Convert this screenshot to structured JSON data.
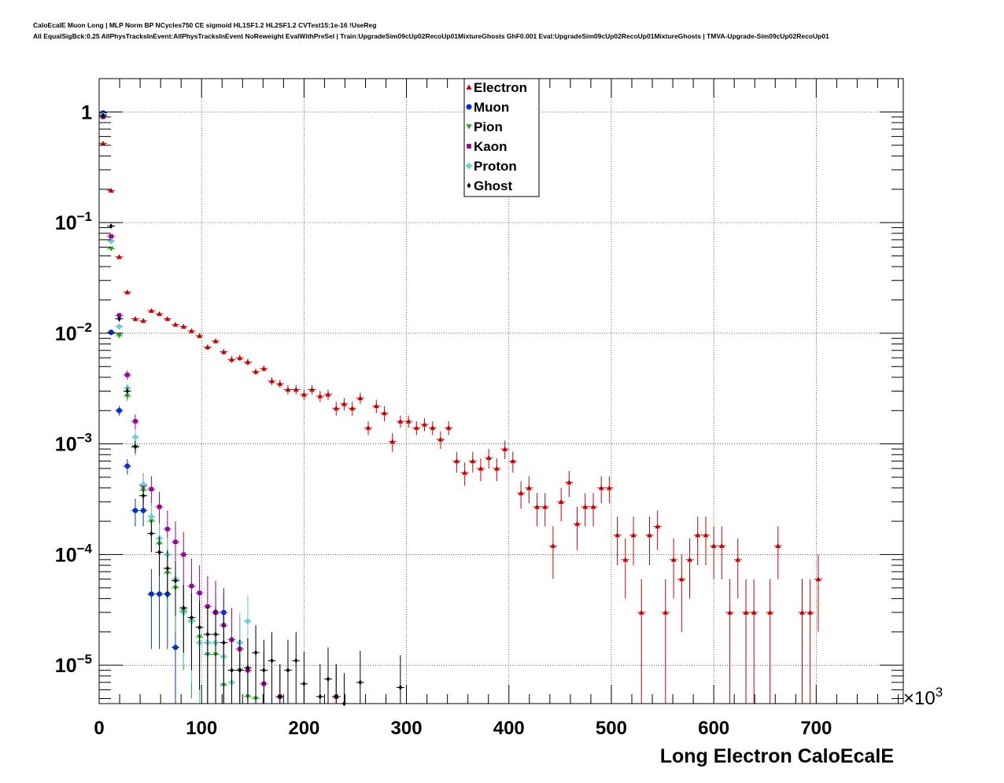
{
  "chart_data": {
    "type": "scatter",
    "title": "CaloEcalE Muon Long | MLP Norm BP NCycles750 CE sigmoid HL1SF1.2 HL2SF1.2 CVTest15:1e-16 !UseReg",
    "subtitle": "All EqualSigBck:0.25 AllPhysTracksInEvent:AllPhysTracksInEvent NoReweight EvalWithPreSel | Train:UpgradeSim09cUp02RecoUp01MixtureGhosts GhF0.001 Eval:UpgradeSim09cUp02RecoUp01MixtureGhosts | TMVA-Upgrade-Sim09cUp02RecoUp01",
    "xlabel": "Long Electron CaloEcalE",
    "x_multiplier_label": "×10",
    "x_multiplier_exp": "3",
    "xlim": [
      0,
      785
    ],
    "ylim": [
      4.5e-06,
      2.0
    ],
    "yscale": "log",
    "grid": true,
    "legend_position": "top-center",
    "x_ticks": [
      {
        "value": 0,
        "label": "0"
      },
      {
        "value": 100,
        "label": "100"
      },
      {
        "value": 200,
        "label": "200"
      },
      {
        "value": 300,
        "label": "300"
      },
      {
        "value": 400,
        "label": "400"
      },
      {
        "value": 500,
        "label": "500"
      },
      {
        "value": 600,
        "label": "600"
      },
      {
        "value": 700,
        "label": "700"
      }
    ],
    "y_ticks": [
      {
        "value": 1,
        "base": "1",
        "exp": ""
      },
      {
        "value": 0.1,
        "base": "10",
        "exp": "−1"
      },
      {
        "value": 0.01,
        "base": "10",
        "exp": "−2"
      },
      {
        "value": 0.001,
        "base": "10",
        "exp": "−3"
      },
      {
        "value": 0.0001,
        "base": "10",
        "exp": "−4"
      },
      {
        "value": 1e-05,
        "base": "10",
        "exp": "−5"
      }
    ],
    "series": [
      {
        "name": "Electron",
        "color": "#cc0000",
        "marker": "triangle-up",
        "points": [
          [
            3.9,
            0.52,
            0.005
          ],
          [
            11.7,
            0.195,
            0.003
          ],
          [
            19.6,
            0.049,
            0.0012
          ],
          [
            27.5,
            0.0235,
            0.0008
          ],
          [
            35.3,
            0.0135,
            0.0006
          ],
          [
            43.1,
            0.013,
            0.0006
          ],
          [
            51.0,
            0.016,
            0.0006
          ],
          [
            58.8,
            0.015,
            0.0006
          ],
          [
            66.7,
            0.0135,
            0.0006
          ],
          [
            74.5,
            0.012,
            0.0005
          ],
          [
            82.4,
            0.0115,
            0.0005
          ],
          [
            90.2,
            0.0105,
            0.0005
          ],
          [
            98.0,
            0.0095,
            0.0005
          ],
          [
            105.9,
            0.0075,
            0.0004
          ],
          [
            113.7,
            0.0085,
            0.0004
          ],
          [
            121.6,
            0.0068,
            0.0004
          ],
          [
            129.4,
            0.0058,
            0.0004
          ],
          [
            137.3,
            0.006,
            0.0004
          ],
          [
            145.1,
            0.0055,
            0.0004
          ],
          [
            152.9,
            0.0045,
            0.0003
          ],
          [
            160.8,
            0.0048,
            0.0003
          ],
          [
            168.6,
            0.0037,
            0.0003
          ],
          [
            176.5,
            0.0035,
            0.0003
          ],
          [
            184.3,
            0.0031,
            0.0003
          ],
          [
            192.2,
            0.0031,
            0.0003
          ],
          [
            200.0,
            0.0028,
            0.0003
          ],
          [
            207.8,
            0.0031,
            0.0003
          ],
          [
            215.7,
            0.0027,
            0.0003
          ],
          [
            223.5,
            0.0028,
            0.0003
          ],
          [
            231.4,
            0.0021,
            0.0003
          ],
          [
            239.2,
            0.0023,
            0.0003
          ],
          [
            247.1,
            0.0021,
            0.0003
          ],
          [
            254.9,
            0.0026,
            0.0003
          ],
          [
            262.7,
            0.0014,
            0.0002
          ],
          [
            270.6,
            0.0022,
            0.0003
          ],
          [
            278.4,
            0.0019,
            0.0003
          ],
          [
            286.3,
            0.00105,
            0.0002
          ],
          [
            294.1,
            0.0016,
            0.0002
          ],
          [
            302.0,
            0.0016,
            0.0002
          ],
          [
            309.8,
            0.0014,
            0.0002
          ],
          [
            317.6,
            0.0015,
            0.0002
          ],
          [
            325.5,
            0.0014,
            0.0002
          ],
          [
            333.3,
            0.0011,
            0.0002
          ],
          [
            341.2,
            0.0014,
            0.0002
          ],
          [
            349.0,
            0.0007,
            0.00015
          ],
          [
            356.9,
            0.00055,
            0.00013
          ],
          [
            364.7,
            0.0007,
            0.00015
          ],
          [
            372.5,
            0.0006,
            0.00014
          ],
          [
            380.4,
            0.00075,
            0.00015
          ],
          [
            388.2,
            0.0006,
            0.00014
          ],
          [
            396.1,
            0.0009,
            0.00017
          ],
          [
            403.9,
            0.0007,
            0.00015
          ],
          [
            411.8,
            0.00036,
            0.0001
          ],
          [
            419.6,
            0.0004,
            0.00011
          ],
          [
            427.5,
            0.00027,
            9e-05
          ],
          [
            435.3,
            0.00027,
            9e-05
          ],
          [
            443.1,
            0.00012,
            6e-05
          ],
          [
            451.0,
            0.0003,
            0.0001
          ],
          [
            458.8,
            0.00045,
            0.00012
          ],
          [
            466.7,
            0.00019,
            8e-05
          ],
          [
            474.5,
            0.00027,
            9e-05
          ],
          [
            482.4,
            0.00027,
            9e-05
          ],
          [
            490.2,
            0.0004,
            0.00011
          ],
          [
            498.0,
            0.0004,
            0.00011
          ],
          [
            505.9,
            0.00015,
            7e-05
          ],
          [
            513.7,
            9e-05,
            5e-05
          ],
          [
            521.6,
            0.00015,
            7e-05
          ],
          [
            529.4,
            3e-05,
            3e-05
          ],
          [
            537.3,
            0.00015,
            7e-05
          ],
          [
            545.1,
            0.00018,
            7e-05
          ],
          [
            552.9,
            3e-05,
            3e-05
          ],
          [
            560.8,
            9e-05,
            5e-05
          ],
          [
            568.6,
            6e-05,
            4e-05
          ],
          [
            576.5,
            9e-05,
            5e-05
          ],
          [
            584.3,
            0.00015,
            7e-05
          ],
          [
            592.2,
            0.00015,
            7e-05
          ],
          [
            600.0,
            0.00012,
            6e-05
          ],
          [
            607.8,
            0.00012,
            6e-05
          ],
          [
            615.7,
            3e-05,
            3e-05
          ],
          [
            623.5,
            9e-05,
            5e-05
          ],
          [
            631.4,
            3e-05,
            3e-05
          ],
          [
            639.2,
            3e-05,
            3e-05
          ],
          [
            654.9,
            3e-05,
            3e-05
          ],
          [
            662.7,
            0.00012,
            6e-05
          ],
          [
            686.3,
            3e-05,
            3e-05
          ],
          [
            694.1,
            3e-05,
            3e-05
          ],
          [
            702.0,
            6e-05,
            4e-05
          ]
        ]
      },
      {
        "name": "Muon",
        "color": "#0033cc",
        "marker": "circle",
        "points": [
          [
            3.9,
            0.98,
            0.006
          ],
          [
            11.7,
            0.0102,
            0.0006
          ],
          [
            19.6,
            0.002,
            0.0002
          ],
          [
            27.5,
            0.00063,
            0.0001
          ],
          [
            35.3,
            0.00025,
            7e-05
          ],
          [
            43.1,
            0.00025,
            7e-05
          ],
          [
            51.0,
            4.4e-05,
            3e-05
          ],
          [
            58.8,
            4.4e-05,
            3e-05
          ],
          [
            66.7,
            4.4e-05,
            3e-05
          ],
          [
            74.5,
            1.45e-05,
            1.45e-05
          ],
          [
            113.7,
            3e-05,
            2e-05
          ],
          [
            121.6,
            3e-05,
            2e-05
          ]
        ]
      },
      {
        "name": "Pion",
        "color": "#22aa22",
        "marker": "triangle-down",
        "points": [
          [
            3.9,
            0.93,
            0.005
          ],
          [
            11.7,
            0.058,
            0.0015
          ],
          [
            19.6,
            0.0095,
            0.0005
          ],
          [
            27.5,
            0.0027,
            0.00025
          ],
          [
            35.3,
            0.00093,
            0.00014
          ],
          [
            43.1,
            0.00038,
            9e-05
          ],
          [
            51.0,
            0.0002,
            6e-05
          ],
          [
            58.8,
            0.000125,
            5e-05
          ],
          [
            66.7,
            6.8e-05,
            3.5e-05
          ],
          [
            74.5,
            5e-05,
            3e-05
          ],
          [
            82.4,
            3.1e-05,
            2.2e-05
          ],
          [
            90.2,
            2.5e-05,
            2e-05
          ],
          [
            98.0,
            1.8e-05,
            1.5e-05
          ],
          [
            105.9,
            1.25e-05,
            1e-05
          ],
          [
            113.7,
            1.25e-05,
            1e-05
          ],
          [
            121.6,
            6.6e-06,
            6.6e-06
          ],
          [
            137.3,
            9e-06,
            8e-06
          ],
          [
            145.1,
            5.2e-06,
            5e-06
          ],
          [
            152.9,
            5e-06,
            5e-06
          ]
        ]
      },
      {
        "name": "Kaon",
        "color": "#990099",
        "marker": "square",
        "points": [
          [
            3.9,
            0.9,
            0.006
          ],
          [
            11.7,
            0.075,
            0.002
          ],
          [
            19.6,
            0.0145,
            0.0008
          ],
          [
            27.5,
            0.0042,
            0.0004
          ],
          [
            35.3,
            0.0016,
            0.00025
          ],
          [
            43.1,
            0.00042,
            0.00012
          ],
          [
            51.0,
            0.00039,
            0.00012
          ],
          [
            58.8,
            0.00027,
            0.0001
          ],
          [
            66.7,
            0.00017,
            8e-05
          ],
          [
            74.5,
            0.00013,
            7e-05
          ],
          [
            82.4,
            0.0001,
            6e-05
          ],
          [
            90.2,
            5.2e-05,
            4e-05
          ],
          [
            98.0,
            4.5e-05,
            3.5e-05
          ],
          [
            105.9,
            3.4e-05,
            3e-05
          ],
          [
            113.7,
            3e-05,
            2.8e-05
          ],
          [
            121.6,
            2.3e-05,
            2.2e-05
          ],
          [
            129.4,
            1.7e-05,
            1.6e-05
          ],
          [
            137.3,
            1.4e-05,
            1.3e-05
          ],
          [
            145.1,
            9e-06,
            8e-06
          ],
          [
            160.8,
            6.8e-06,
            6.5e-06
          ],
          [
            176.5,
            5.2e-06,
            5e-06
          ],
          [
            231.4,
            5.2e-06,
            5e-06
          ]
        ]
      },
      {
        "name": "Proton",
        "color": "#66cccc",
        "marker": "cross",
        "points": [
          [
            3.9,
            0.95,
            0.006
          ],
          [
            11.7,
            0.068,
            0.002
          ],
          [
            19.6,
            0.0115,
            0.0007
          ],
          [
            27.5,
            0.0032,
            0.0003
          ],
          [
            35.3,
            0.00115,
            0.00018
          ],
          [
            43.1,
            0.00043,
            0.0001
          ],
          [
            51.0,
            0.00022,
            7e-05
          ],
          [
            58.8,
            0.00014,
            5e-05
          ],
          [
            66.7,
            0.0001,
            4e-05
          ],
          [
            74.5,
            6e-05,
            3e-05
          ],
          [
            82.4,
            3e-05,
            2e-05
          ],
          [
            90.2,
            2.5e-05,
            1.8e-05
          ],
          [
            98.0,
            1.6e-05,
            1.4e-05
          ],
          [
            105.9,
            1.6e-05,
            1.4e-05
          ],
          [
            113.7,
            1.6e-05,
            1.4e-05
          ],
          [
            121.6,
            1.2e-05,
            1.1e-05
          ],
          [
            129.4,
            7e-06,
            6e-06
          ],
          [
            137.3,
            1.6e-05,
            1.4e-05
          ],
          [
            145.1,
            2.5e-05,
            1.8e-05
          ]
        ]
      },
      {
        "name": "Ghost",
        "color": "#000000",
        "marker": "diamond",
        "points": [
          [
            3.9,
            0.93,
            0.006
          ],
          [
            11.7,
            0.093,
            0.002
          ],
          [
            19.6,
            0.0135,
            0.0008
          ],
          [
            27.5,
            0.003,
            0.00025
          ],
          [
            35.3,
            0.00095,
            0.00012
          ],
          [
            43.1,
            0.00034,
            8e-05
          ],
          [
            51.0,
            0.000155,
            5e-05
          ],
          [
            58.8,
            0.000105,
            4e-05
          ],
          [
            66.7,
            7.5e-05,
            3.5e-05
          ],
          [
            74.5,
            5.8e-05,
            3e-05
          ],
          [
            82.4,
            3.3e-05,
            2e-05
          ],
          [
            90.2,
            2.7e-05,
            1.8e-05
          ],
          [
            98.0,
            2.2e-05,
            1.6e-05
          ],
          [
            105.9,
            1.9e-05,
            1.5e-05
          ],
          [
            113.7,
            1.9e-05,
            1.5e-05
          ],
          [
            121.6,
            1.6e-05,
            1.3e-05
          ],
          [
            129.4,
            9e-06,
            8e-06
          ],
          [
            137.3,
            9e-06,
            8e-06
          ],
          [
            145.1,
            9.5e-06,
            8e-06
          ],
          [
            152.9,
            1.3e-05,
            1e-05
          ],
          [
            160.8,
            9e-06,
            8e-06
          ],
          [
            168.6,
            1.1e-05,
            9e-06
          ],
          [
            176.5,
            5.2e-06,
            5e-06
          ],
          [
            184.3,
            9e-06,
            8e-06
          ],
          [
            192.2,
            1.1e-05,
            9e-06
          ],
          [
            200.0,
            6.8e-06,
            6.5e-06
          ],
          [
            215.7,
            5.2e-06,
            5e-06
          ],
          [
            223.5,
            7.5e-06,
            7e-06
          ],
          [
            231.4,
            5.2e-06,
            5e-06
          ],
          [
            239.2,
            4.5e-06,
            4e-06
          ],
          [
            254.9,
            7e-06,
            6.5e-06
          ],
          [
            294.1,
            6.3e-06,
            6e-06
          ]
        ]
      }
    ]
  }
}
